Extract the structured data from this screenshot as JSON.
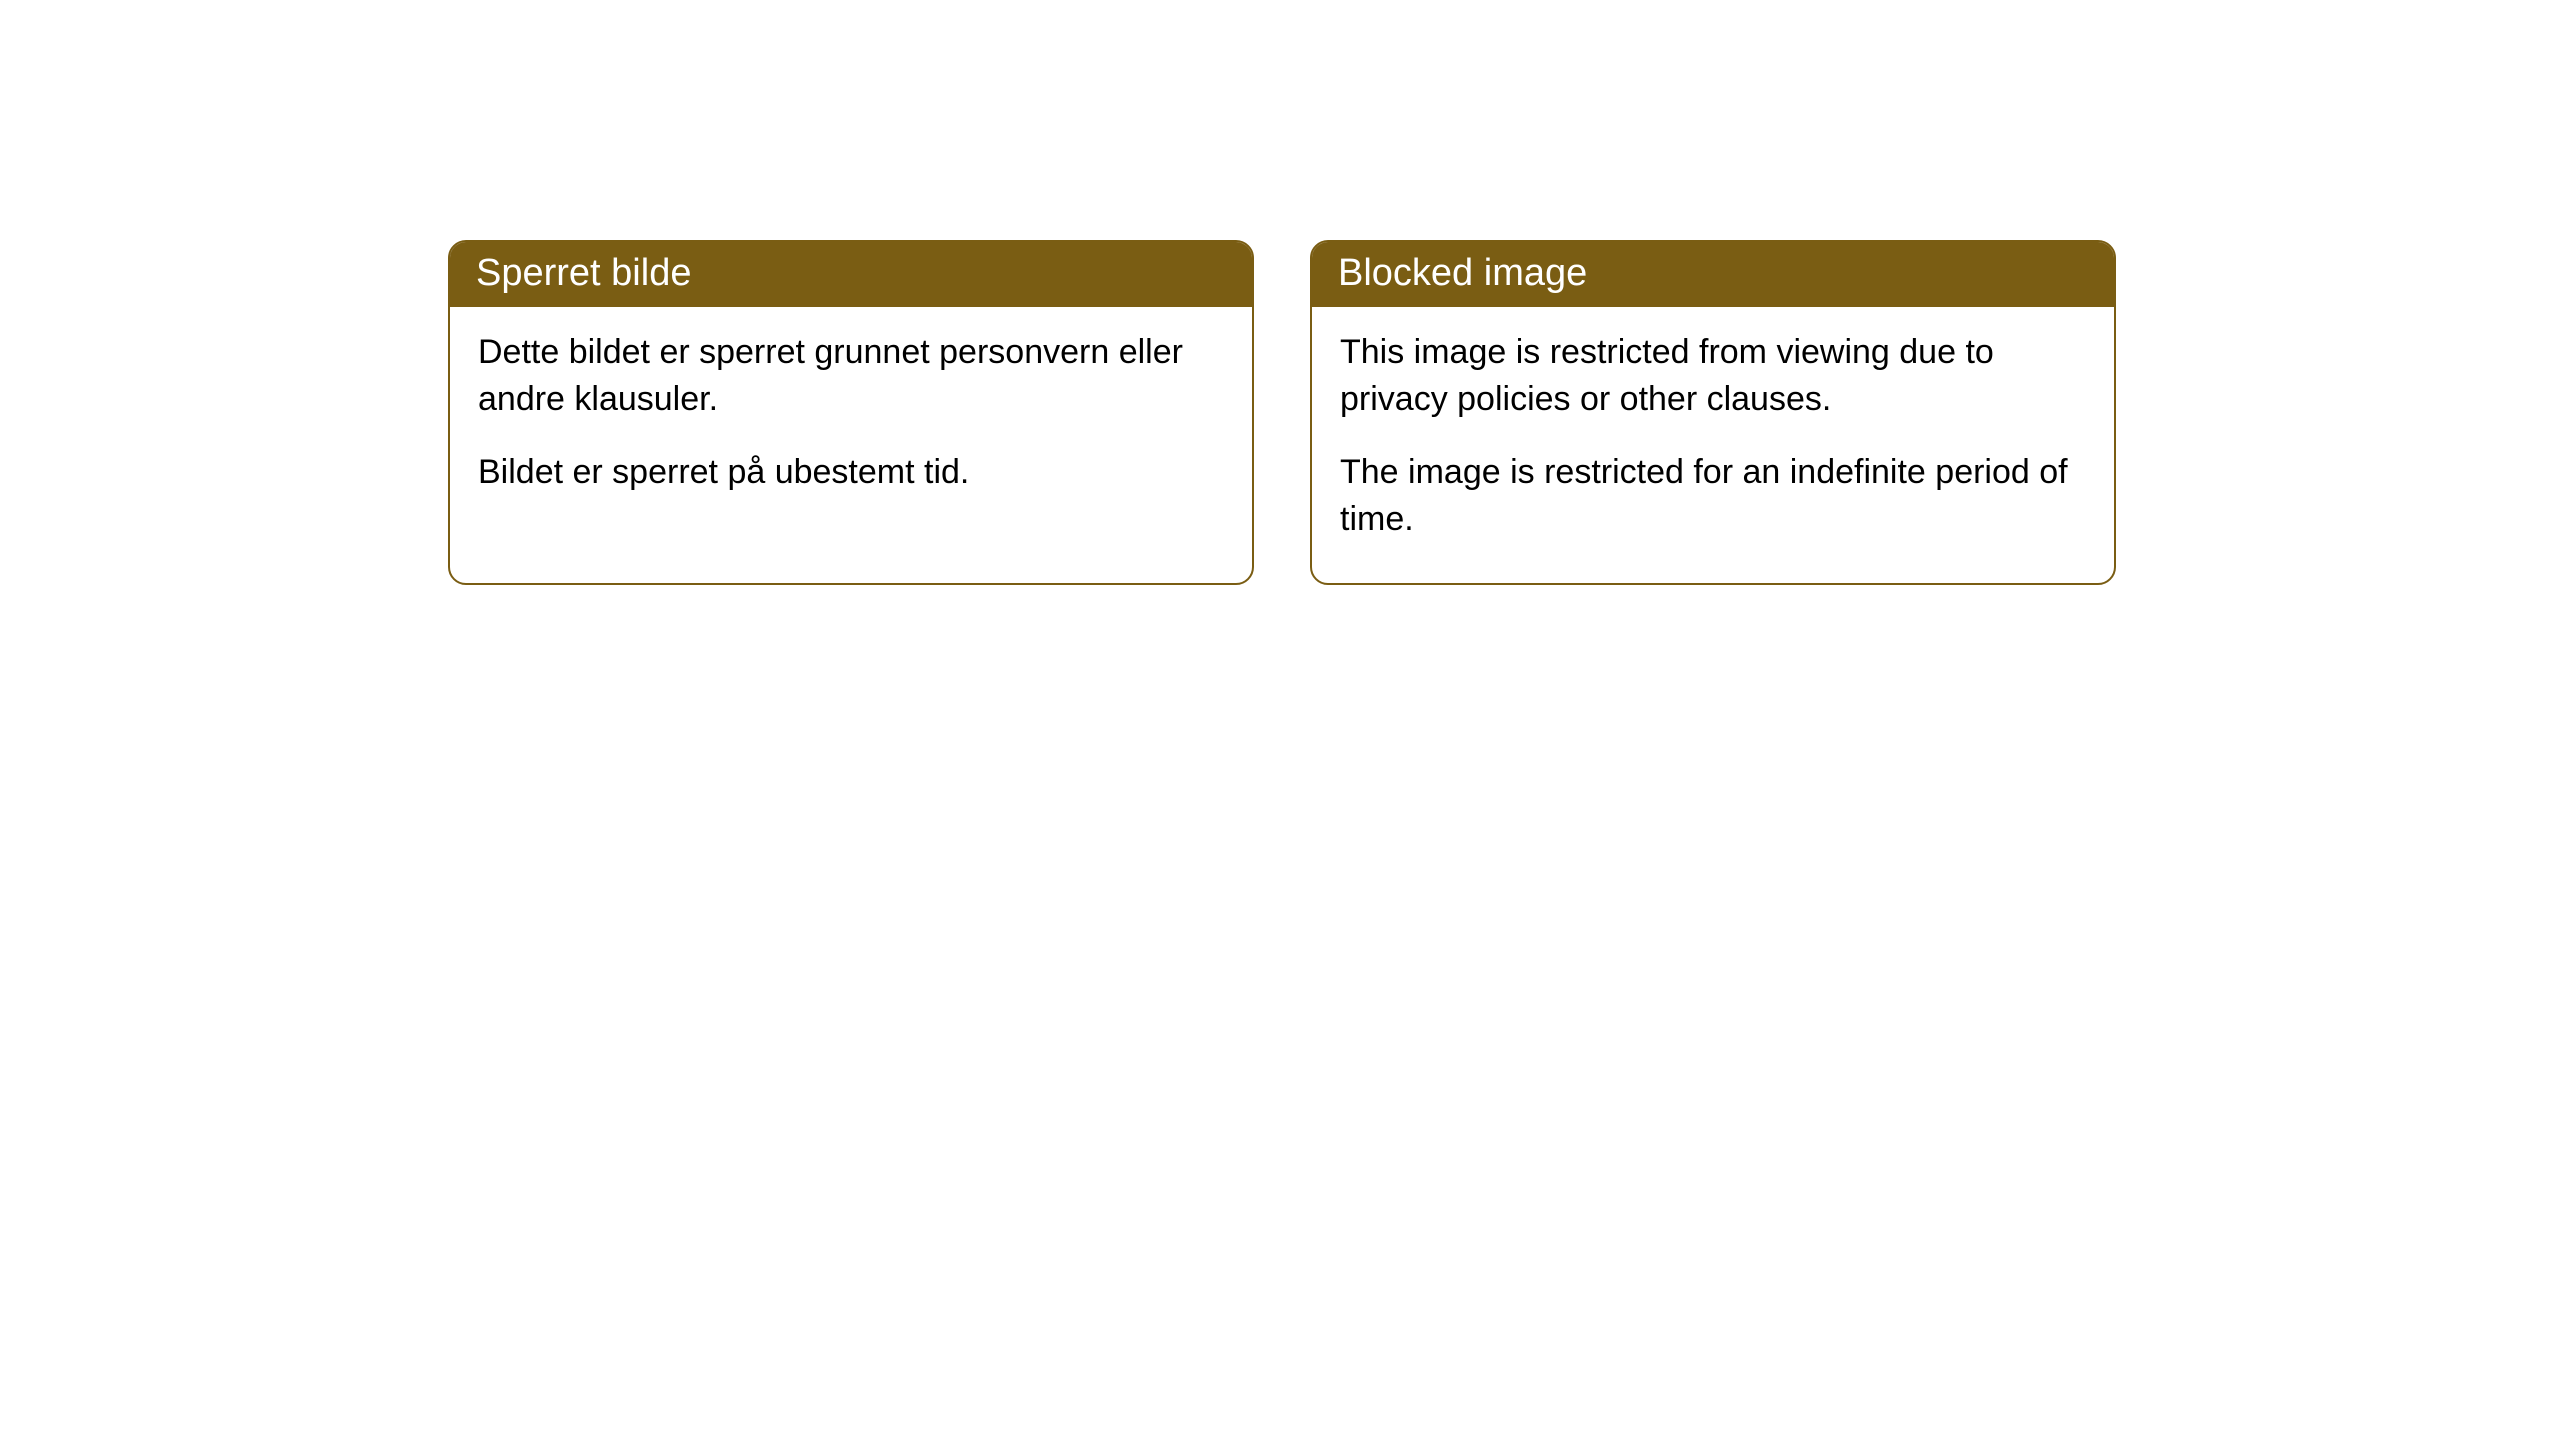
{
  "cards": [
    {
      "title": "Sperret bilde",
      "para1": "Dette bildet er sperret grunnet personvern eller andre klausuler.",
      "para2": "Bildet er sperret på ubestemt tid."
    },
    {
      "title": "Blocked image",
      "para1": "This image is restricted from viewing due to privacy policies or other clauses.",
      "para2": "The image is restricted for an indefinite period of time."
    }
  ],
  "style": {
    "header_bg": "#7a5d13",
    "header_text_color": "#ffffff",
    "border_color": "#7a5d13",
    "body_text_color": "#000000",
    "background_color": "#ffffff",
    "border_radius": 18,
    "header_fontsize": 38,
    "body_fontsize": 34
  }
}
